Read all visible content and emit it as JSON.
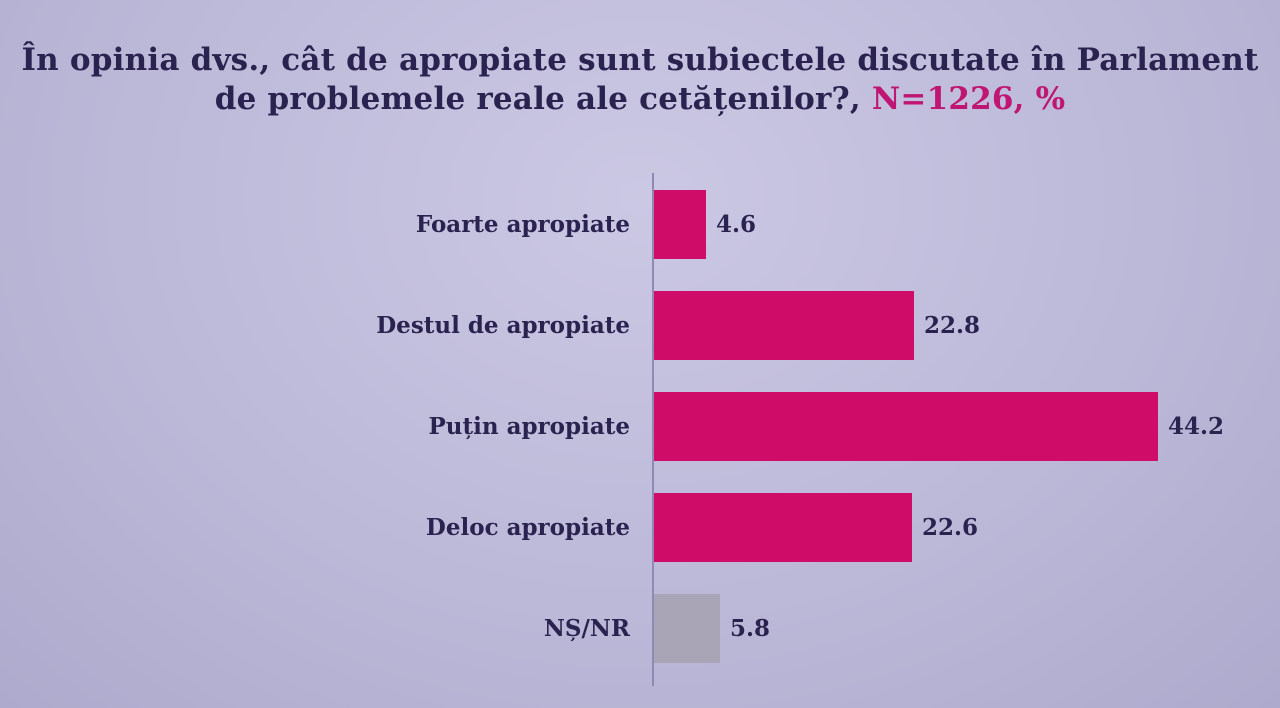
{
  "title": {
    "line1": "În opinia dvs., cât de apropiate sunt subiectele discutate în Parlament",
    "line2_dark": "de problemele reale ale cetățenilor?,",
    "line2_highlight": "N=1226, %"
  },
  "chart_data": {
    "type": "bar",
    "orientation": "horizontal",
    "title": "În opinia dvs., cât de apropiate sunt subiectele discutate în Parlament de problemele reale ale cetățenilor?, N=1226, %",
    "sample_size_label": "N=1226, %",
    "categories": [
      "Foarte apropiate",
      "Destul de apropiate",
      "Puțin apropiate",
      "Deloc apropiate",
      "NȘ/NR"
    ],
    "values": [
      4.6,
      22.8,
      44.2,
      22.6,
      5.8
    ],
    "value_labels": [
      "4.6",
      "22.8",
      "44.2",
      "22.6",
      "5.8"
    ],
    "bar_colors": [
      "#d00c69",
      "#d00c69",
      "#d00c69",
      "#d00c69",
      "#a9a5b6"
    ],
    "xlim": [
      0,
      50
    ],
    "grid": false,
    "legend": "none"
  },
  "colors": {
    "background": "#bcb8d8",
    "bar_pink": "#d00c69",
    "bar_gray": "#a9a5b6",
    "text_dark": "#2a2350",
    "title_highlight": "#bf1573",
    "axis_line": "#8f8ab4"
  }
}
